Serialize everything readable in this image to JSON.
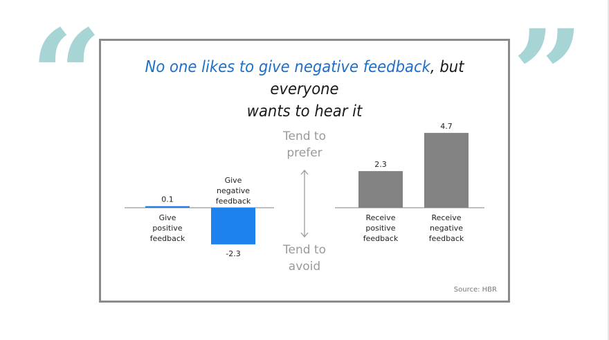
{
  "slide": {
    "open_quote": "“",
    "close_quote": "”",
    "title_part1": "No one likes to give negative feedback",
    "title_part2": ", but everyone",
    "title_line2": "wants to hear it",
    "source": "Source: HBR"
  },
  "colors": {
    "quote": "#a7d4d4",
    "title_accent": "#1e6fc8",
    "give_bars": "#1e82ee",
    "receive_bars": "#828282",
    "axis": "#999999",
    "middle_text": "#9a9a9a"
  },
  "chart_data": [
    {
      "type": "bar",
      "categories": [
        "Give positive feedback",
        "Give negative feedback"
      ],
      "values": [
        0.1,
        -2.3
      ],
      "value_labels": [
        "0.1",
        "-2.3"
      ],
      "color": "#1e82ee"
    },
    {
      "type": "bar",
      "categories": [
        "Receive positive feedback",
        "Receive negative feedback"
      ],
      "values": [
        2.3,
        4.7
      ],
      "value_labels": [
        "2.3",
        "4.7"
      ],
      "color": "#828282"
    }
  ],
  "middle": {
    "prefer_line1": "Tend to",
    "prefer_line2": "prefer",
    "avoid_line1": "Tend to",
    "avoid_line2": "avoid"
  }
}
